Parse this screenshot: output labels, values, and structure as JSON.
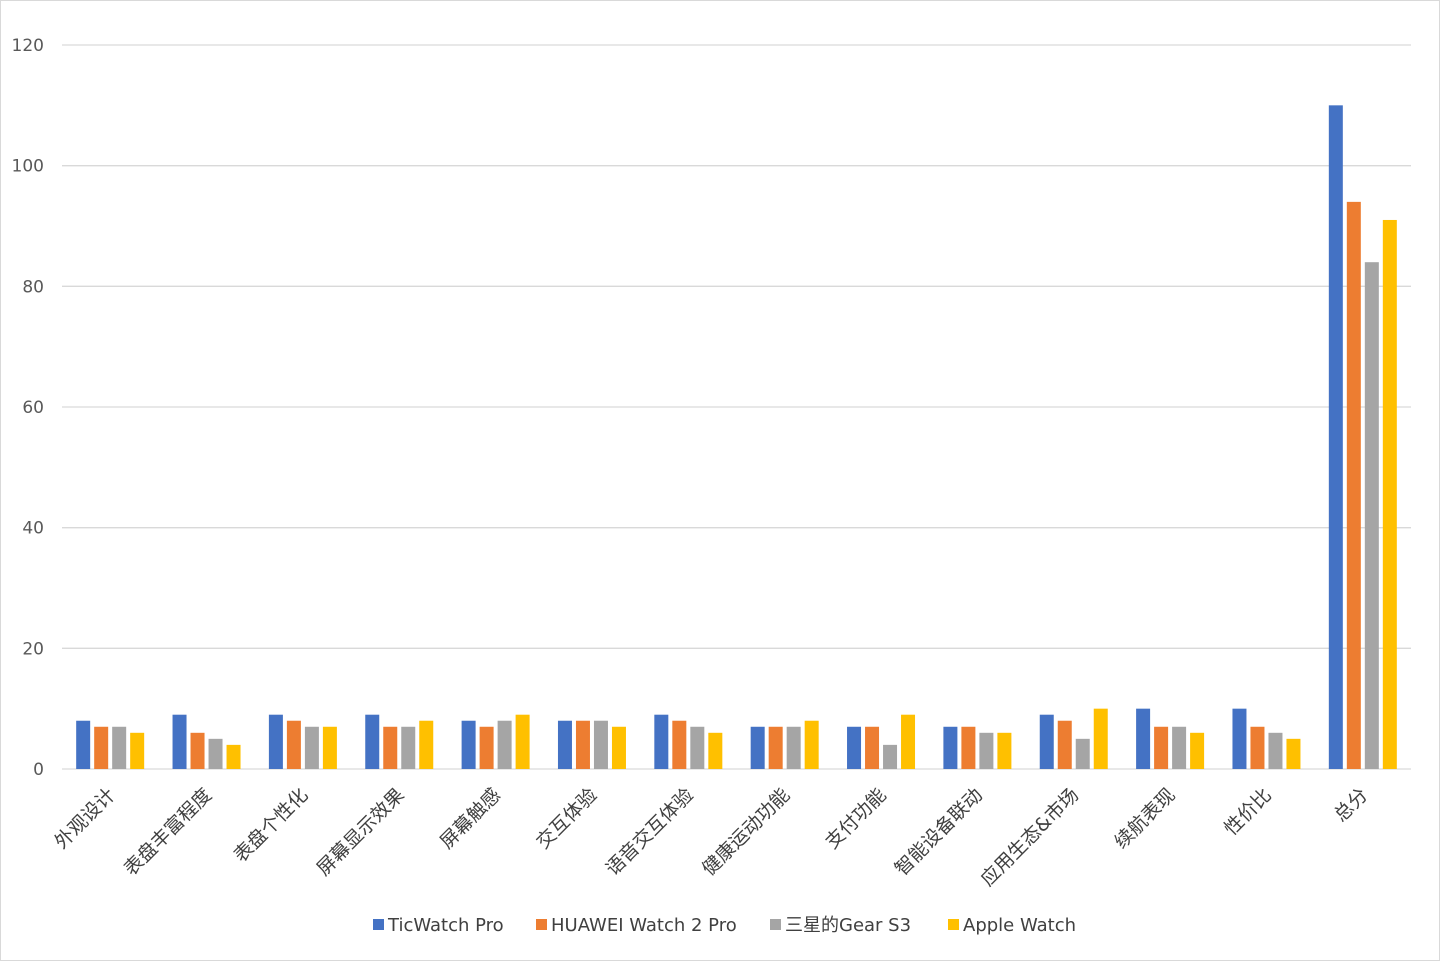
{
  "chart_data": {
    "type": "bar",
    "title": "",
    "xlabel": "",
    "ylabel": "",
    "ylim": [
      0,
      120
    ],
    "yticks": [
      0,
      20,
      40,
      60,
      80,
      100,
      120
    ],
    "grid": "horizontal",
    "legend_position": "bottom",
    "categories": [
      "外观设计",
      "表盘丰富程度",
      "表盘个性化",
      "屏幕显示效果",
      "屏幕触感",
      "交互体验",
      "语音交互体验",
      "健康运动功能",
      "支付功能",
      "智能设备联动",
      "应用生态&市场",
      "续航表现",
      "性价比",
      "总分"
    ],
    "series": [
      {
        "name": "TicWatch Pro",
        "color": "#4472C4",
        "values": [
          8,
          9,
          9,
          9,
          8,
          8,
          9,
          7,
          7,
          7,
          9,
          10,
          10,
          110
        ]
      },
      {
        "name": "HUAWEI Watch 2 Pro",
        "color": "#ED7D31",
        "values": [
          7,
          6,
          8,
          7,
          7,
          8,
          8,
          7,
          7,
          7,
          8,
          7,
          7,
          94
        ]
      },
      {
        "name": "三星的Gear S3",
        "color": "#A5A5A5",
        "values": [
          7,
          5,
          7,
          7,
          8,
          8,
          7,
          7,
          4,
          6,
          5,
          7,
          6,
          84
        ]
      },
      {
        "name": "Apple Watch",
        "color": "#FFC000",
        "values": [
          6,
          4,
          7,
          8,
          9,
          7,
          6,
          8,
          9,
          6,
          10,
          6,
          5,
          91
        ]
      }
    ]
  }
}
